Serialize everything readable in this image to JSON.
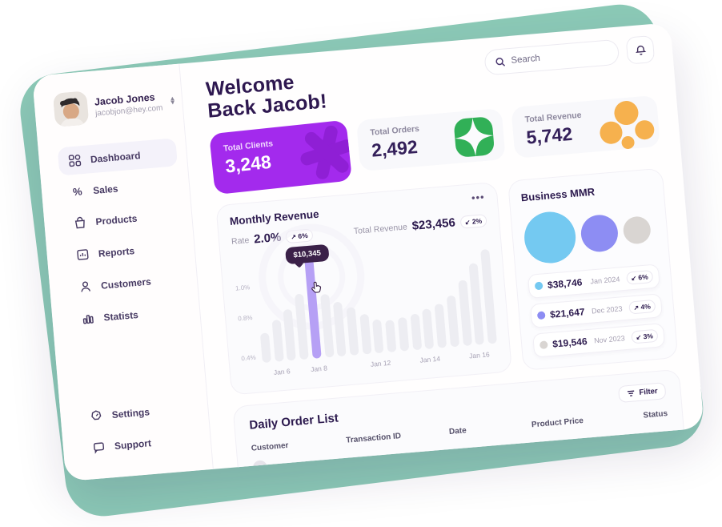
{
  "colors": {
    "teal_backdrop": "#8ccab7",
    "accent_purple": "#a32aed",
    "bar_highlight": "#b6a0f5",
    "tooltip_bg": "#3b2149",
    "green_logo": "#31b057",
    "orange_circles": "#f6b14e",
    "mmr_blue": "#74c9f1",
    "mmr_purple": "#8d8df3",
    "mmr_gray": "#d9d5d2",
    "heading_text": "#2e1850"
  },
  "sidebar": {
    "profile": {
      "name": "Jacob Jones",
      "email": "jacobjon@hey.com"
    },
    "items": [
      {
        "label": "Dashboard",
        "icon": "grid-icon",
        "active": true
      },
      {
        "label": "Sales",
        "icon": "percent-icon",
        "active": false
      },
      {
        "label": "Products",
        "icon": "bag-icon",
        "active": false
      },
      {
        "label": "Reports",
        "icon": "report-icon",
        "active": false
      },
      {
        "label": "Customers",
        "icon": "user-icon",
        "active": false
      },
      {
        "label": "Statists",
        "icon": "bar-chart-icon",
        "active": false
      }
    ],
    "footer": [
      {
        "label": "Settings",
        "icon": "settings-icon"
      },
      {
        "label": "Support",
        "icon": "chat-icon"
      }
    ]
  },
  "topbar": {
    "search_placeholder": "Search",
    "bell_icon": "bell-icon"
  },
  "header": {
    "title_line1": "Welcome",
    "title_line2": "Back Jacob!"
  },
  "stats": {
    "clients": {
      "label": "Total Clients",
      "value": "3,248"
    },
    "orders": {
      "label": "Total Orders",
      "value": "2,492"
    },
    "revenue": {
      "label": "Total Revenue",
      "value": "5,742"
    }
  },
  "monthly_revenue": {
    "title": "Monthly Revenue",
    "rate_label": "Rate",
    "rate_value": "2.0%",
    "rate_arrow": "↗",
    "rate_change": "6%",
    "total_label": "Total Revenue",
    "total_value": "$23,456",
    "total_arrow": "↙",
    "total_change": "2%",
    "tooltip": "$10,345"
  },
  "chart_data": {
    "type": "bar",
    "title": "Monthly Revenue",
    "values": [
      30,
      42,
      52,
      66,
      100,
      64,
      55,
      48,
      40,
      34,
      32,
      34,
      36,
      40,
      44,
      52,
      66,
      82,
      95
    ],
    "highlight_index": 4,
    "highlight_value": "$10,345",
    "x_labels": [
      "Jan 6",
      "Jan 8",
      "Jan 12",
      "Jan 14",
      "Jan 16"
    ],
    "x_label_indices": [
      1,
      4,
      9,
      13,
      17
    ],
    "ylabels": [
      "1.0%",
      "0.8%",
      "0.4%"
    ],
    "ylim": [
      0,
      1.2
    ],
    "grid": false,
    "legend": false
  },
  "business_mmr": {
    "title": "Business MMR",
    "rows": [
      {
        "value": "$38,746",
        "date": "Jan 2024",
        "arrow": "↙",
        "change": "6%",
        "dot": "blue"
      },
      {
        "value": "$21,647",
        "date": "Dec 2023",
        "arrow": "↗",
        "change": "4%",
        "dot": "purple"
      },
      {
        "value": "$19,546",
        "date": "Nov 2023",
        "arrow": "↙",
        "change": "3%",
        "dot": "gray"
      }
    ]
  },
  "daily_orders": {
    "title": "Daily Order List",
    "filter_label": "Filter",
    "columns": [
      "Customer",
      "Transaction ID",
      "Date",
      "Product Price",
      "Status"
    ]
  }
}
